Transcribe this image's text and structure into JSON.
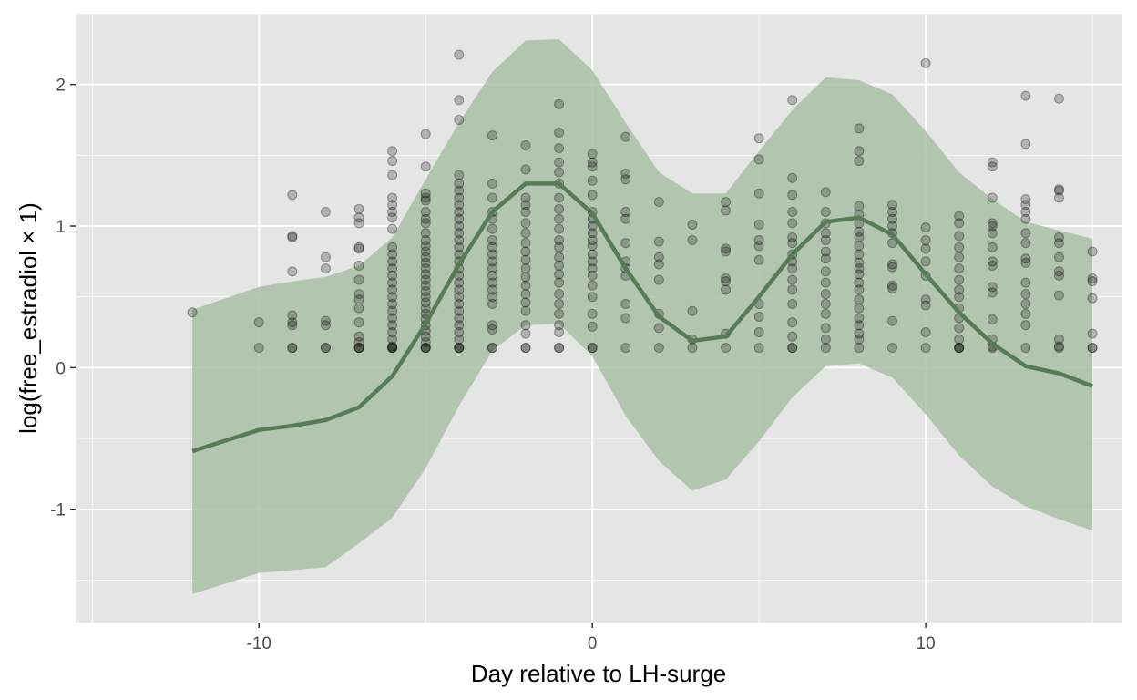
{
  "chart_data": {
    "type": "line",
    "title": "",
    "xlabel": "Day relative to LH-surge",
    "ylabel": "log(free_estradiol × 1)",
    "xlim": [
      -15.5,
      15.9
    ],
    "ylim": [
      -1.8,
      2.5
    ],
    "x_ticks": [
      -10,
      0,
      10
    ],
    "x_tick_labels": [
      "-10",
      "0",
      "10"
    ],
    "y_ticks": [
      -1,
      0,
      1,
      2
    ],
    "y_tick_labels": [
      "-1",
      "0",
      "1",
      "2"
    ],
    "grid": true,
    "legend": "none",
    "colors": {
      "panel": "#e5e5e5",
      "grid": "#ffffff",
      "ribbon": "#a9bfa6",
      "line": "#567c56",
      "points": "#000000"
    },
    "ribbon": {
      "x": [
        -12,
        -10,
        -9,
        -8,
        -7,
        -6,
        -5,
        -4,
        -3,
        -2,
        -1,
        0,
        1,
        2,
        3,
        4,
        5,
        6,
        7,
        8,
        9,
        10,
        11,
        12,
        13,
        14,
        15
      ],
      "lower": [
        -1.6,
        -1.45,
        -1.43,
        -1.41,
        -1.24,
        -1.06,
        -0.71,
        -0.27,
        0.12,
        0.3,
        0.31,
        0.08,
        -0.34,
        -0.66,
        -0.87,
        -0.79,
        -0.52,
        -0.21,
        0.01,
        0.03,
        -0.07,
        -0.33,
        -0.62,
        -0.84,
        -0.98,
        -1.07,
        -1.15
      ],
      "upper": [
        0.41,
        0.57,
        0.61,
        0.64,
        0.72,
        0.92,
        1.33,
        1.73,
        2.09,
        2.31,
        2.32,
        2.1,
        1.73,
        1.38,
        1.23,
        1.23,
        1.53,
        1.82,
        2.05,
        2.03,
        1.93,
        1.67,
        1.38,
        1.19,
        1.03,
        0.97,
        0.91
      ]
    },
    "series": [
      {
        "x": [
          -12,
          -10,
          -9,
          -8,
          -7,
          -6,
          -5,
          -4,
          -3,
          -2,
          -1,
          0,
          1,
          2,
          3,
          4,
          5,
          6,
          7,
          8,
          9,
          10,
          11,
          12,
          13,
          14,
          15
        ],
        "values": [
          -0.59,
          -0.44,
          -0.41,
          -0.37,
          -0.28,
          -0.06,
          0.31,
          0.73,
          1.1,
          1.3,
          1.3,
          1.09,
          0.7,
          0.36,
          0.19,
          0.22,
          0.5,
          0.8,
          1.03,
          1.06,
          0.94,
          0.66,
          0.39,
          0.17,
          0.01,
          -0.04,
          -0.13
        ]
      }
    ],
    "points": [
      {
        "x": -12,
        "y": [
          0.39
        ]
      },
      {
        "x": -10,
        "y": [
          0.32,
          0.14
        ]
      },
      {
        "x": -9,
        "y": [
          1.22,
          0.93,
          0.92,
          0.68,
          0.37,
          0.32,
          0.3,
          0.14,
          0.14
        ]
      },
      {
        "x": -8,
        "y": [
          1.1,
          0.78,
          0.7,
          0.33,
          0.3,
          0.14,
          0.14
        ]
      },
      {
        "x": -7,
        "y": [
          1.12,
          1.06,
          1.02,
          0.85,
          0.84,
          0.72,
          0.62,
          0.52,
          0.48,
          0.42,
          0.32,
          0.22,
          0.18,
          0.14,
          0.14,
          0.14
        ]
      },
      {
        "x": -6,
        "y": [
          1.53,
          1.46,
          1.36,
          1.2,
          1.15,
          1.1,
          1.06,
          0.98,
          0.85,
          0.8,
          0.75,
          0.7,
          0.65,
          0.6,
          0.55,
          0.5,
          0.45,
          0.4,
          0.35,
          0.3,
          0.25,
          0.2,
          0.15,
          0.14,
          0.14,
          0.14
        ]
      },
      {
        "x": -5,
        "y": [
          1.65,
          1.42,
          1.23,
          1.2,
          1.18,
          1.1,
          1.05,
          1.02,
          0.95,
          0.9,
          0.86,
          0.82,
          0.78,
          0.74,
          0.7,
          0.66,
          0.62,
          0.58,
          0.54,
          0.5,
          0.46,
          0.42,
          0.38,
          0.34,
          0.3,
          0.26,
          0.22,
          0.18,
          0.14,
          0.14,
          0.14
        ]
      },
      {
        "x": -4,
        "y": [
          2.21,
          1.89,
          1.75,
          1.36,
          1.3,
          1.25,
          1.2,
          1.15,
          1.1,
          1.05,
          1.0,
          0.95,
          0.9,
          0.85,
          0.8,
          0.75,
          0.7,
          0.65,
          0.6,
          0.55,
          0.5,
          0.45,
          0.4,
          0.35,
          0.3,
          0.25,
          0.2,
          0.14,
          0.14,
          0.14
        ]
      },
      {
        "x": -3,
        "y": [
          1.64,
          1.3,
          1.2,
          1.1,
          1.05,
          0.98,
          0.9,
          0.85,
          0.8,
          0.75,
          0.7,
          0.65,
          0.6,
          0.55,
          0.5,
          0.45,
          0.3,
          0.27,
          0.14,
          0.14
        ]
      },
      {
        "x": -2,
        "y": [
          1.57,
          1.4,
          1.2,
          1.15,
          1.1,
          1.02,
          0.95,
          0.88,
          0.82,
          0.76,
          0.7,
          0.64,
          0.58,
          0.52,
          0.46,
          0.4,
          0.3,
          0.24,
          0.14,
          0.14
        ]
      },
      {
        "x": -1,
        "y": [
          1.86,
          1.66,
          1.55,
          1.45,
          1.38,
          1.3,
          1.2,
          1.12,
          1.05,
          0.98,
          0.9,
          0.85,
          0.78,
          0.72,
          0.66,
          0.6,
          0.52,
          0.45,
          0.38,
          0.3,
          0.25,
          0.14,
          0.14
        ]
      },
      {
        "x": 0,
        "y": [
          1.51,
          1.45,
          1.42,
          1.32,
          1.22,
          1.1,
          1.05,
          1.0,
          0.95,
          0.9,
          0.86,
          0.8,
          0.75,
          0.7,
          0.65,
          0.58,
          0.5,
          0.38,
          0.29,
          0.14,
          0.14
        ]
      },
      {
        "x": 1,
        "y": [
          1.63,
          1.37,
          1.33,
          1.1,
          1.05,
          0.88,
          0.75,
          0.7,
          0.65,
          0.45,
          0.35,
          0.14
        ]
      },
      {
        "x": 2,
        "y": [
          1.17,
          0.89,
          0.78,
          0.73,
          0.62,
          0.38,
          0.28,
          0.14
        ]
      },
      {
        "x": 3,
        "y": [
          1.01,
          0.9,
          0.4,
          0.2,
          0.14
        ]
      },
      {
        "x": 4,
        "y": [
          1.17,
          1.11,
          0.84,
          0.82,
          0.63,
          0.61,
          0.55,
          0.24,
          0.14
        ]
      },
      {
        "x": 5,
        "y": [
          1.62,
          1.47,
          1.23,
          1.01,
          0.9,
          0.86,
          0.76,
          0.45,
          0.36,
          0.25,
          0.14
        ]
      },
      {
        "x": 6,
        "y": [
          1.89,
          1.34,
          1.22,
          1.1,
          1.02,
          0.92,
          0.88,
          0.8,
          0.75,
          0.7,
          0.62,
          0.55,
          0.45,
          0.32,
          0.22,
          0.14,
          0.14
        ]
      },
      {
        "x": 7,
        "y": [
          1.24,
          1.1,
          1.02,
          0.95,
          0.9,
          0.82,
          0.77,
          0.68,
          0.6,
          0.52,
          0.45,
          0.38,
          0.28,
          0.2,
          0.14
        ]
      },
      {
        "x": 8,
        "y": [
          1.69,
          1.53,
          1.46,
          1.14,
          1.08,
          1.02,
          0.96,
          0.92,
          0.86,
          0.8,
          0.74,
          0.7,
          0.66,
          0.6,
          0.55,
          0.48,
          0.42,
          0.35,
          0.3,
          0.24,
          0.2,
          0.14
        ]
      },
      {
        "x": 9,
        "y": [
          1.15,
          1.1,
          1.05,
          1.0,
          0.95,
          0.88,
          0.73,
          0.71,
          0.58,
          0.56,
          0.33,
          0.14
        ]
      },
      {
        "x": 10,
        "y": [
          2.15,
          0.99,
          0.9,
          0.84,
          0.75,
          0.65,
          0.48,
          0.44,
          0.25,
          0.14
        ]
      },
      {
        "x": 11,
        "y": [
          1.07,
          1.02,
          0.93,
          0.85,
          0.78,
          0.7,
          0.62,
          0.55,
          0.5,
          0.42,
          0.35,
          0.28,
          0.2,
          0.14,
          0.14,
          0.14
        ]
      },
      {
        "x": 12,
        "y": [
          1.45,
          1.42,
          1.2,
          1.02,
          1.0,
          0.95,
          0.85,
          0.75,
          0.72,
          0.57,
          0.53,
          0.34,
          0.2,
          0.15,
          0.14
        ]
      },
      {
        "x": 13,
        "y": [
          1.92,
          1.58,
          1.19,
          1.15,
          1.1,
          1.05,
          0.95,
          0.88,
          0.77,
          0.74,
          0.6,
          0.52,
          0.45,
          0.38,
          0.3,
          0.14
        ]
      },
      {
        "x": 14,
        "y": [
          1.9,
          1.26,
          1.25,
          1.2,
          0.92,
          0.88,
          0.78,
          0.68,
          0.65,
          0.51,
          0.2,
          0.15,
          0.14
        ]
      },
      {
        "x": 15,
        "y": [
          0.82,
          0.63,
          0.61,
          0.49,
          0.24,
          0.14,
          0.14
        ]
      }
    ]
  }
}
